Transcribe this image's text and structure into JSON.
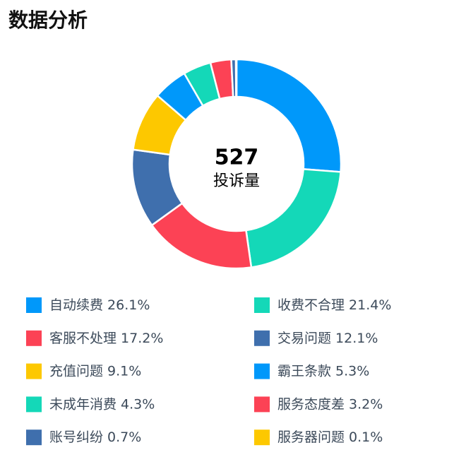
{
  "chart_data": {
    "type": "donut",
    "title": "数据分析",
    "center_value": 527,
    "center_label": "投诉量",
    "categories": [
      "自动续费",
      "收费不合理",
      "客服不处理",
      "交易问题",
      "充值问题",
      "霸王条款",
      "未成年消费",
      "服务态度差",
      "账号纠纷",
      "服务器问题"
    ],
    "values": [
      26.1,
      21.4,
      17.2,
      12.1,
      9.1,
      5.3,
      4.3,
      3.2,
      0.7,
      0.1
    ],
    "value_labels": [
      "26.1%",
      "21.4%",
      "17.2%",
      "12.1%",
      "9.1%",
      "5.3%",
      "4.3%",
      "3.2%",
      "0.7%",
      "0.1%"
    ],
    "colors": [
      "#0098fa",
      "#14d8b8",
      "#fc4255",
      "#3f6fad",
      "#fdc800",
      "#0098fa",
      "#14d8b8",
      "#fc4255",
      "#3f6fad",
      "#fdc800"
    ]
  }
}
